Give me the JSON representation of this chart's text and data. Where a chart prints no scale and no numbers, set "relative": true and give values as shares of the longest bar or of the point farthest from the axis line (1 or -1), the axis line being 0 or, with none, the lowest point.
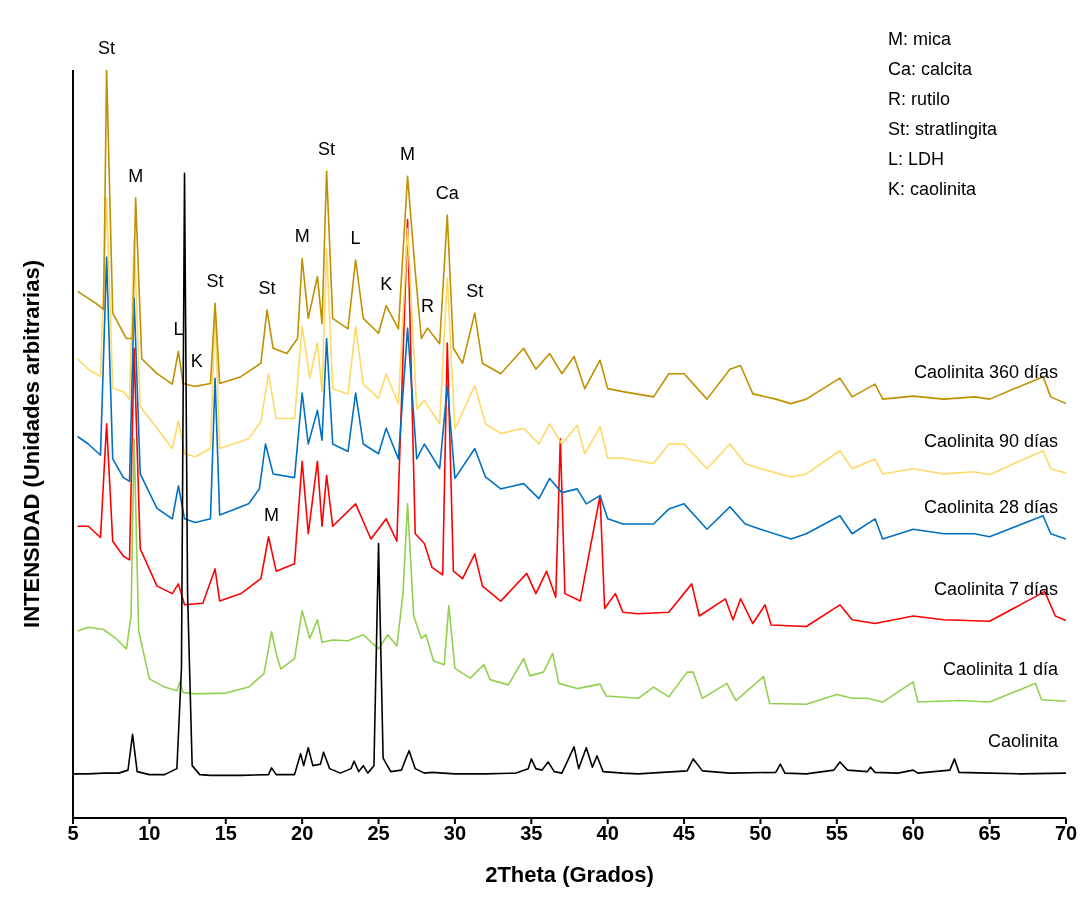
{
  "chart_data": {
    "type": "line",
    "relative": true,
    "xlabel": "2Theta (Grados)",
    "ylabel": "INTENSIDAD (Unidades arbitrarias)",
    "xlim": [
      5,
      70
    ],
    "xticks": [
      5,
      10,
      15,
      20,
      25,
      30,
      35,
      40,
      45,
      50,
      55,
      60,
      65,
      70
    ],
    "grid": false,
    "legend": false,
    "marker": "none",
    "line_style": "solid",
    "series": [
      {
        "name": "Caolinita 1 día",
        "color": "#92d050",
        "x": [
          5.3,
          6,
          7,
          7.8,
          8.5,
          8.8,
          9.0,
          9.3,
          10,
          11,
          11.8,
          12,
          12.2,
          13,
          15,
          16.5,
          17.5,
          18,
          18.3,
          18.6,
          19.5,
          20,
          20.5,
          21,
          21.3,
          22,
          23,
          24,
          25,
          25.6,
          26.2,
          26.6,
          26.9,
          27.3,
          27.8,
          28.1,
          28.6,
          29.3,
          29.6,
          30,
          31,
          31.9,
          32.3,
          33.5,
          34.5,
          34.9,
          35.8,
          36.4,
          36.8,
          38,
          39.5,
          39.9,
          42,
          43,
          44,
          45.2,
          45.6,
          46.2,
          47.8,
          48.4,
          50.2,
          50.6,
          53,
          55,
          56,
          57,
          58,
          60,
          60.3,
          63,
          65,
          68,
          68.4,
          70
        ],
        "values": [
          0.25,
          0.255,
          0.252,
          0.24,
          0.226,
          0.27,
          0.507,
          0.25,
          0.186,
          0.175,
          0.17,
          0.182,
          0.168,
          0.166,
          0.167,
          0.175,
          0.193,
          0.249,
          0.22,
          0.199,
          0.213,
          0.277,
          0.24,
          0.265,
          0.235,
          0.238,
          0.237,
          0.245,
          0.226,
          0.245,
          0.23,
          0.3,
          0.42,
          0.27,
          0.24,
          0.245,
          0.21,
          0.205,
          0.284,
          0.2,
          0.187,
          0.205,
          0.185,
          0.178,
          0.213,
          0.19,
          0.195,
          0.22,
          0.18,
          0.173,
          0.179,
          0.163,
          0.16,
          0.175,
          0.162,
          0.195,
          0.195,
          0.16,
          0.18,
          0.157,
          0.189,
          0.153,
          0.152,
          0.165,
          0.16,
          0.16,
          0.155,
          0.182,
          0.155,
          0.157,
          0.155,
          0.18,
          0.158,
          0.156
        ]
      },
      {
        "name": "Caolinita 7 días",
        "color": "#ff0000",
        "x": [
          5.3,
          6,
          6.8,
          7.2,
          7.6,
          8.3,
          8.7,
          9.0,
          9.4,
          10.5,
          11.5,
          11.9,
          12.3,
          13.5,
          14.3,
          14.6,
          16,
          17.3,
          17.8,
          18.3,
          19.5,
          20,
          20.4,
          21,
          21.3,
          21.6,
          22,
          23.5,
          24.5,
          25.5,
          26.2,
          26.9,
          27.4,
          28,
          28.5,
          29.2,
          29.5,
          29.9,
          30.5,
          31.3,
          31.8,
          33,
          34.7,
          35.3,
          36,
          36.6,
          36.9,
          37.2,
          38.2,
          39.5,
          39.8,
          40.5,
          41,
          42,
          44,
          45.5,
          46,
          47.7,
          48.2,
          48.7,
          49.5,
          50.3,
          50.7,
          53,
          55.2,
          56,
          57.5,
          60,
          62,
          65,
          68,
          68.6,
          69.3,
          70
        ],
        "values": [
          0.39,
          0.39,
          0.375,
          0.527,
          0.37,
          0.35,
          0.345,
          0.628,
          0.36,
          0.31,
          0.3,
          0.313,
          0.285,
          0.287,
          0.333,
          0.29,
          0.3,
          0.32,
          0.376,
          0.33,
          0.34,
          0.477,
          0.38,
          0.477,
          0.39,
          0.458,
          0.39,
          0.42,
          0.373,
          0.4,
          0.37,
          0.8,
          0.38,
          0.367,
          0.335,
          0.325,
          0.635,
          0.33,
          0.32,
          0.353,
          0.31,
          0.29,
          0.327,
          0.3,
          0.33,
          0.295,
          0.507,
          0.3,
          0.29,
          0.431,
          0.28,
          0.3,
          0.275,
          0.273,
          0.275,
          0.313,
          0.27,
          0.293,
          0.265,
          0.293,
          0.26,
          0.285,
          0.258,
          0.256,
          0.285,
          0.265,
          0.26,
          0.27,
          0.265,
          0.263,
          0.296,
          0.303,
          0.27,
          0.264
        ]
      },
      {
        "name": "Caolinita 28 días",
        "color": "#0070c0",
        "x": [
          5.3,
          6,
          6.8,
          7.2,
          7.6,
          8.3,
          8.7,
          9.0,
          9.4,
          10.5,
          11.5,
          11.9,
          12.3,
          13,
          14,
          14.3,
          14.6,
          16.5,
          17.2,
          17.6,
          18.1,
          19.5,
          20,
          20.4,
          21,
          21.3,
          21.6,
          22,
          23,
          23.5,
          24,
          25,
          25.5,
          26.3,
          26.9,
          27.5,
          28,
          29,
          29.5,
          30,
          31.3,
          32,
          33,
          34.5,
          35.5,
          36.2,
          37,
          38,
          38.6,
          39.5,
          40,
          41,
          43,
          44,
          45,
          46.5,
          48,
          49,
          50,
          52,
          53,
          55.2,
          56,
          57.5,
          58,
          60,
          62,
          64,
          65,
          68.5,
          69,
          70
        ],
        "values": [
          0.51,
          0.5,
          0.485,
          0.75,
          0.48,
          0.455,
          0.45,
          0.695,
          0.46,
          0.414,
          0.4,
          0.444,
          0.4,
          0.395,
          0.4,
          0.588,
          0.405,
          0.42,
          0.44,
          0.5,
          0.46,
          0.455,
          0.568,
          0.5,
          0.545,
          0.505,
          0.641,
          0.5,
          0.49,
          0.568,
          0.5,
          0.487,
          0.521,
          0.48,
          0.655,
          0.48,
          0.5,
          0.467,
          0.578,
          0.454,
          0.494,
          0.456,
          0.44,
          0.447,
          0.427,
          0.454,
          0.435,
          0.44,
          0.42,
          0.431,
          0.4,
          0.393,
          0.393,
          0.413,
          0.42,
          0.386,
          0.416,
          0.393,
          0.386,
          0.373,
          0.38,
          0.404,
          0.38,
          0.4,
          0.373,
          0.386,
          0.38,
          0.38,
          0.376,
          0.404,
          0.38,
          0.373
        ]
      },
      {
        "name": "Caolinita 90 días",
        "color": "#ffd966",
        "x": [
          5.3,
          6,
          6.8,
          7.2,
          7.6,
          8.3,
          8.7,
          9.0,
          9.4,
          10.5,
          11.5,
          11.9,
          12.3,
          13,
          14,
          14.3,
          14.6,
          16.5,
          17.3,
          17.8,
          18.3,
          19.5,
          20,
          20.5,
          21,
          21.3,
          21.6,
          22,
          23,
          23.5,
          24,
          25,
          25.5,
          26.3,
          26.9,
          27.5,
          28,
          29,
          29.5,
          30,
          31.3,
          32,
          33,
          34.5,
          35.5,
          36.2,
          37,
          38,
          38.5,
          39.5,
          40,
          41,
          43,
          44,
          45,
          46.5,
          48,
          49,
          50,
          52,
          53,
          55.2,
          56,
          57.5,
          58,
          60,
          62,
          64,
          65,
          68.5,
          69,
          70
        ],
        "values": [
          0.614,
          0.6,
          0.59,
          0.829,
          0.575,
          0.57,
          0.56,
          0.775,
          0.55,
          0.521,
          0.494,
          0.531,
          0.487,
          0.483,
          0.494,
          0.681,
          0.494,
          0.507,
          0.53,
          0.594,
          0.534,
          0.534,
          0.657,
          0.588,
          0.635,
          0.57,
          0.762,
          0.574,
          0.567,
          0.657,
          0.58,
          0.561,
          0.594,
          0.554,
          0.788,
          0.547,
          0.558,
          0.527,
          0.722,
          0.52,
          0.578,
          0.527,
          0.514,
          0.521,
          0.5,
          0.527,
          0.5,
          0.525,
          0.487,
          0.523,
          0.481,
          0.481,
          0.474,
          0.5,
          0.5,
          0.467,
          0.5,
          0.474,
          0.467,
          0.456,
          0.46,
          0.491,
          0.467,
          0.48,
          0.46,
          0.467,
          0.46,
          0.463,
          0.459,
          0.491,
          0.467,
          0.461
        ]
      },
      {
        "name": "Caolinita 360 días",
        "color": "#bf9000",
        "x": [
          5.3,
          6.5,
          7,
          7.2,
          7.6,
          8.5,
          8.9,
          9.1,
          9.5,
          10.5,
          11.5,
          11.9,
          12.2,
          13,
          14,
          14.3,
          14.6,
          16,
          17.3,
          17.7,
          18.1,
          19,
          19.7,
          20,
          20.4,
          21,
          21.3,
          21.6,
          22,
          23,
          23.5,
          24,
          25,
          25.5,
          26.3,
          26.9,
          27.4,
          27.8,
          28.2,
          29,
          29.5,
          29.9,
          30.5,
          31.3,
          31.8,
          33,
          34.5,
          35.3,
          36.2,
          37,
          37.8,
          38.5,
          39.5,
          40,
          41,
          43,
          44,
          45,
          46.5,
          48,
          48.7,
          49.5,
          51,
          52,
          53,
          55.2,
          56,
          57.5,
          58,
          60,
          62,
          64,
          65,
          68.5,
          69,
          70
        ],
        "values": [
          0.704,
          0.688,
          0.68,
          1.0,
          0.675,
          0.641,
          0.641,
          0.829,
          0.614,
          0.594,
          0.58,
          0.624,
          0.581,
          0.577,
          0.581,
          0.688,
          0.581,
          0.59,
          0.608,
          0.679,
          0.628,
          0.621,
          0.641,
          0.748,
          0.668,
          0.724,
          0.661,
          0.865,
          0.668,
          0.654,
          0.746,
          0.668,
          0.648,
          0.685,
          0.654,
          0.858,
          0.731,
          0.641,
          0.655,
          0.634,
          0.806,
          0.628,
          0.608,
          0.675,
          0.608,
          0.594,
          0.628,
          0.6,
          0.621,
          0.594,
          0.617,
          0.574,
          0.612,
          0.574,
          0.57,
          0.563,
          0.594,
          0.594,
          0.56,
          0.6,
          0.605,
          0.567,
          0.56,
          0.554,
          0.56,
          0.588,
          0.563,
          0.58,
          0.56,
          0.564,
          0.56,
          0.563,
          0.56,
          0.59,
          0.563,
          0.554
        ]
      },
      {
        "name": "Caolinita",
        "color": "#000000",
        "x": [
          5,
          6,
          7,
          8,
          8.6,
          8.9,
          9.2,
          10,
          11,
          11.8,
          12.1,
          12.3,
          12.5,
          12.8,
          13.3,
          14,
          16,
          17.8,
          18,
          18.3,
          19.5,
          19.9,
          20.1,
          20.4,
          20.7,
          21.2,
          21.4,
          21.8,
          22.5,
          23.2,
          23.4,
          23.7,
          24,
          24.3,
          24.7,
          25,
          25.3,
          25.8,
          26.5,
          26.8,
          27,
          27.4,
          28,
          28.5,
          30,
          32,
          34,
          34.8,
          35,
          35.3,
          35.7,
          36.1,
          36.5,
          37,
          37.8,
          38.1,
          38.6,
          39,
          39.3,
          39.7,
          41,
          42,
          45.2,
          45.6,
          46.2,
          48,
          51,
          51.3,
          51.6,
          53,
          54.8,
          55.2,
          55.7,
          57,
          57.2,
          57.5,
          59,
          60,
          60.3,
          62.4,
          62.7,
          63,
          65,
          67,
          70
        ],
        "values": [
          0.059,
          0.059,
          0.06,
          0.06,
          0.064,
          0.112,
          0.062,
          0.058,
          0.058,
          0.066,
          0.2,
          0.862,
          0.3,
          0.07,
          0.058,
          0.057,
          0.057,
          0.058,
          0.067,
          0.058,
          0.058,
          0.086,
          0.07,
          0.094,
          0.07,
          0.072,
          0.088,
          0.066,
          0.06,
          0.066,
          0.076,
          0.062,
          0.07,
          0.06,
          0.07,
          0.367,
          0.08,
          0.062,
          0.064,
          0.08,
          0.09,
          0.066,
          0.06,
          0.061,
          0.059,
          0.059,
          0.06,
          0.066,
          0.079,
          0.066,
          0.064,
          0.075,
          0.062,
          0.06,
          0.095,
          0.066,
          0.094,
          0.068,
          0.083,
          0.062,
          0.06,
          0.059,
          0.063,
          0.079,
          0.063,
          0.06,
          0.061,
          0.072,
          0.06,
          0.059,
          0.064,
          0.075,
          0.064,
          0.062,
          0.068,
          0.061,
          0.06,
          0.064,
          0.06,
          0.064,
          0.079,
          0.061,
          0.06,
          0.059,
          0.06
        ]
      }
    ],
    "annotations": [
      "M: mica",
      "Ca: calcita",
      "R: rutilo",
      "St: stratlingita",
      "L: LDH",
      "K: caolinita",
      {
        "text": "St",
        "x": 7.2,
        "y": 1.0
      },
      {
        "text": "M",
        "x": 9.1,
        "y": 0.829
      },
      {
        "text": "L",
        "x": 11.9,
        "y": 0.624
      },
      {
        "text": "K",
        "x": 13.1,
        "y": 0.581
      },
      {
        "text": "St",
        "x": 14.3,
        "y": 0.688
      },
      {
        "text": "St",
        "x": 17.7,
        "y": 0.679
      },
      {
        "text": "M",
        "x": 18.0,
        "y": 0.376
      },
      {
        "text": "M",
        "x": 20.0,
        "y": 0.748
      },
      {
        "text": "St",
        "x": 21.6,
        "y": 0.865
      },
      {
        "text": "L",
        "x": 23.5,
        "y": 0.746
      },
      {
        "text": "K",
        "x": 25.5,
        "y": 0.685
      },
      {
        "text": "M",
        "x": 26.9,
        "y": 0.858
      },
      {
        "text": "R",
        "x": 28.2,
        "y": 0.655
      },
      {
        "text": "Ca",
        "x": 29.5,
        "y": 0.806
      },
      {
        "text": "St",
        "x": 31.3,
        "y": 0.675
      }
    ]
  }
}
